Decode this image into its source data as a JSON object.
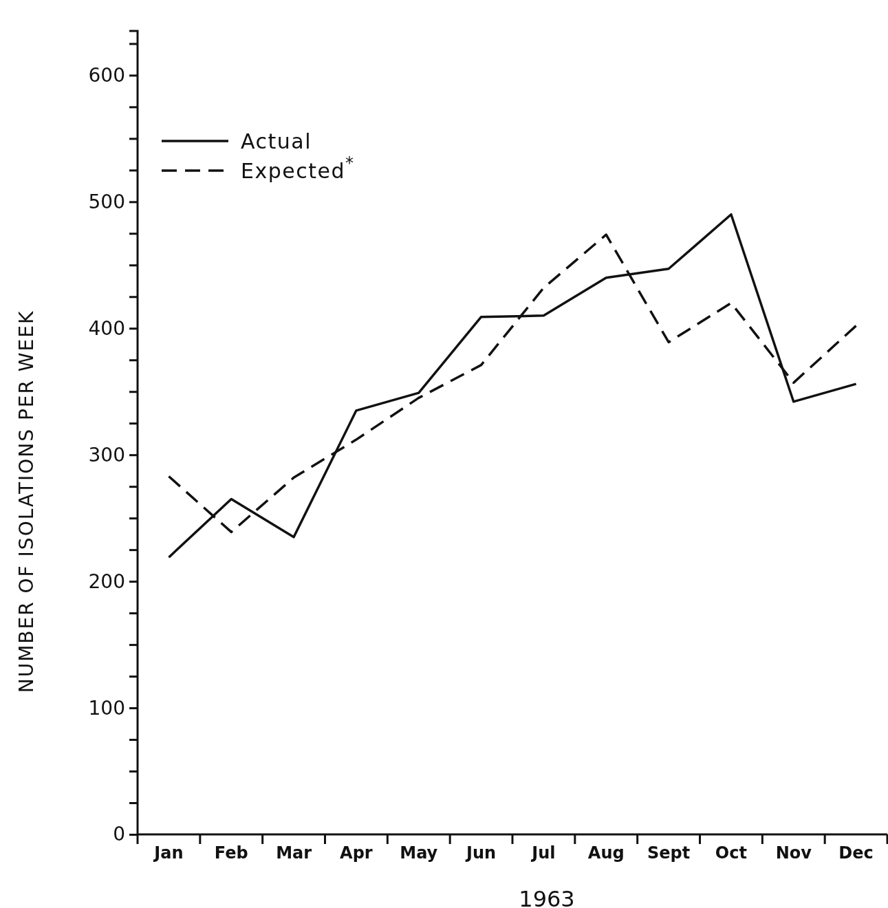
{
  "chart_data": {
    "type": "line",
    "xlabel": "1963",
    "ylabel": "NUMBER OF ISOLATIONS PER WEEK",
    "categories": [
      "Jan",
      "Feb",
      "Mar",
      "Apr",
      "May",
      "Jun",
      "Jul",
      "Aug",
      "Sept",
      "Oct",
      "Nov",
      "Dec"
    ],
    "series": [
      {
        "name": "Actual",
        "color": "#111111",
        "line_style": "solid",
        "values": [
          219,
          265,
          235,
          335,
          349,
          409,
          410,
          440,
          447,
          490,
          342,
          356
        ]
      },
      {
        "name": "Expected$^{*}$",
        "color": "#111111",
        "line_style": "dashed",
        "values": [
          283,
          239,
          282,
          312,
          345,
          371,
          432,
          474,
          389,
          420,
          357,
          402
        ]
      }
    ],
    "ylim": [
      0,
      635
    ],
    "yticks": [
      0,
      {
        "value": 25,
        "label": null
      },
      {
        "value": 50,
        "label": null
      },
      {
        "value": 75,
        "label": null
      },
      100,
      {
        "value": 125,
        "label": null
      },
      {
        "value": 150,
        "label": null
      },
      {
        "value": 175,
        "label": null
      },
      200,
      {
        "value": 225,
        "label": null
      },
      {
        "value": 250,
        "label": null
      },
      {
        "value": 275,
        "label": null
      },
      300,
      {
        "value": 325,
        "label": null
      },
      {
        "value": 350,
        "label": null
      },
      {
        "value": 375,
        "label": null
      },
      400,
      {
        "value": 425,
        "label": null
      },
      {
        "value": 450,
        "label": null
      },
      {
        "value": 475,
        "label": null
      },
      500,
      {
        "value": 525,
        "label": null
      },
      {
        "value": 550,
        "label": null
      },
      {
        "value": 575,
        "label": null
      },
      600,
      {
        "value": 625,
        "label": null
      }
    ],
    "legend": "top left",
    "grid": false,
    "marker": "none"
  }
}
